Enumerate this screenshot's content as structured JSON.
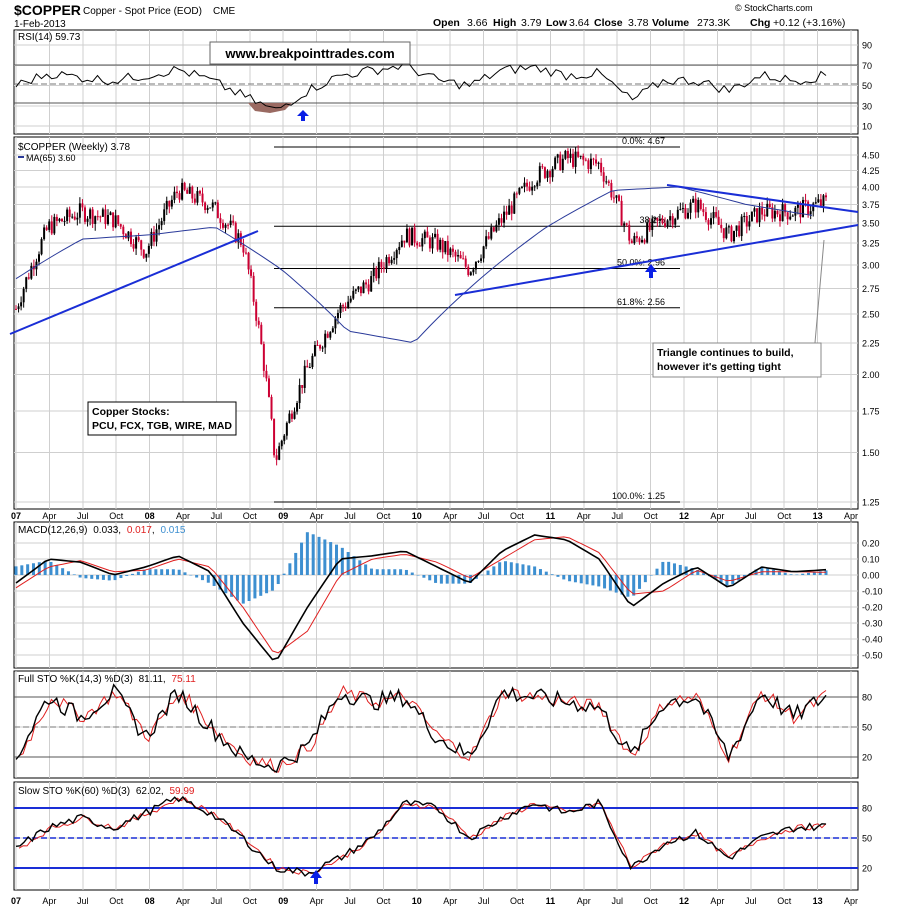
{
  "header": {
    "symbol": "$COPPER",
    "description": "Copper - Spot Price (EOD)",
    "exchange": "CME",
    "date": "1-Feb-2013",
    "copyright": "© StockCharts.com",
    "ohlc": {
      "open_label": "Open",
      "open": "3.66",
      "high_label": "High",
      "high": "3.79",
      "low_label": "Low",
      "low": "3.64",
      "close_label": "Close",
      "close": "3.78",
      "volume_label": "Volume",
      "volume": "273.3K",
      "chg_label": "Chg",
      "chg": "+0.12 (+3.16%)"
    }
  },
  "watermark": "www.breakpointtrades.com",
  "colors": {
    "price_up": "#000000",
    "price_down": "#cc0033",
    "ma": "#2a3a9a",
    "trendline": "#1a2ed6",
    "rsi_low_fill": "#9a6a62",
    "rsi_high_fill": "#9a9a9a",
    "macd_line": "#000000",
    "signal_line": "#e02020",
    "histogram": "#3d8fd0",
    "annotation_text": "#0000cc",
    "grid": "#cfcfcf",
    "arrow": "#0a1fe6"
  },
  "x_axis": {
    "labels": [
      "07",
      "Apr",
      "Jul",
      "Oct",
      "08",
      "Apr",
      "Jul",
      "Oct",
      "09",
      "Apr",
      "Jul",
      "Oct",
      "10",
      "Apr",
      "Jul",
      "Oct",
      "11",
      "Apr",
      "Jul",
      "Oct",
      "12",
      "Apr",
      "Jul",
      "Oct",
      "13",
      "Apr"
    ],
    "bold_labels": [
      "07",
      "08",
      "09",
      "10",
      "11",
      "12",
      "13"
    ]
  },
  "panels": {
    "rsi": {
      "label": "RSI(14) 59.73",
      "ticks": [
        "90",
        "70",
        "50",
        "30",
        "10"
      ]
    },
    "price": {
      "label": "$COPPER (Weekly) 3.78",
      "ma_label": "MA(65) 3.60",
      "ticks": [
        "4.50",
        "4.25",
        "4.00",
        "3.75",
        "3.50",
        "3.25",
        "3.00",
        "2.75",
        "2.50",
        "2.25",
        "2.00",
        "1.75",
        "1.50",
        "1.25"
      ],
      "fib_labels": [
        "0.0%: 4.67",
        "38.2%",
        "50.0%: 2.96",
        "61.8%: 2.56",
        "100.0%: 1.25"
      ],
      "annotations": {
        "triangle_line1": "Triangle continues to build,",
        "triangle_line2": "however it's getting tight",
        "stocks_line1": "Copper Stocks:",
        "stocks_line2": "PCU, FCX, TGB, WIRE, MAD"
      }
    },
    "macd": {
      "label_prefix": "MACD(12,26,9)",
      "macd_value": "0.033",
      "signal_value": "0.017",
      "hist_value": "0.015",
      "ticks": [
        "0.20",
        "0.10",
        "0.00",
        "-0.10",
        "-0.20",
        "-0.30",
        "-0.40",
        "-0.50"
      ]
    },
    "full_sto": {
      "label_prefix": "Full STO %K(14,3) %D(3)",
      "k_value": "81.11",
      "d_value": "75.11",
      "ticks": [
        "80",
        "50",
        "20"
      ]
    },
    "slow_sto": {
      "label_prefix": "Slow STO %K(60) %D(3)",
      "k_value": "62.02",
      "d_value": "59.99",
      "ticks": [
        "80",
        "50",
        "20"
      ]
    }
  },
  "chart_data": [
    {
      "type": "line",
      "title": "$COPPER (Weekly)",
      "series": [
        {
          "name": "$COPPER (Weekly)",
          "x": [
            "2007-01",
            "2007-04",
            "2007-07",
            "2007-10",
            "2008-01",
            "2008-04",
            "2008-07",
            "2008-10",
            "2009-01",
            "2009-04",
            "2009-07",
            "2009-10",
            "2010-01",
            "2010-04",
            "2010-07",
            "2010-10",
            "2011-01",
            "2011-04",
            "2011-07",
            "2011-10",
            "2012-01",
            "2012-04",
            "2012-07",
            "2012-10",
            "2013-01",
            "2013-02"
          ],
          "values": [
            2.55,
            3.45,
            3.65,
            3.55,
            3.15,
            3.95,
            3.75,
            3.25,
            1.45,
            2.05,
            2.55,
            2.85,
            3.35,
            3.25,
            2.95,
            3.55,
            4.15,
            4.45,
            4.35,
            3.25,
            3.55,
            3.75,
            3.35,
            3.65,
            3.65,
            3.78
          ]
        },
        {
          "name": "MA(65)",
          "x": [
            "2007-01",
            "2007-07",
            "2008-01",
            "2008-07",
            "2009-01",
            "2009-07",
            "2010-01",
            "2010-07",
            "2011-01",
            "2011-07",
            "2012-01",
            "2012-07",
            "2013-01"
          ],
          "values": [
            2.85,
            3.3,
            3.35,
            3.45,
            2.95,
            2.35,
            2.25,
            2.85,
            3.45,
            3.95,
            4.0,
            3.75,
            3.6
          ]
        }
      ],
      "scale": "log",
      "ylim": [
        1.2,
        4.8
      ]
    },
    {
      "type": "line",
      "title": "RSI(14)",
      "series": [
        {
          "name": "RSI(14)",
          "values": [
            50,
            62,
            58,
            55,
            60,
            66,
            55,
            40,
            25,
            45,
            60,
            65,
            70,
            55,
            50,
            65,
            68,
            60,
            62,
            35,
            55,
            55,
            45,
            60,
            55,
            59.73
          ]
        }
      ],
      "ylim": [
        0,
        100
      ]
    },
    {
      "type": "line",
      "title": "MACD(12,26,9)",
      "series": [
        {
          "name": "MACD",
          "values": [
            -0.05,
            0.1,
            0.08,
            0.0,
            0.05,
            0.12,
            0.02,
            -0.3,
            -0.55,
            -0.2,
            0.1,
            0.12,
            0.15,
            0.05,
            -0.05,
            0.15,
            0.25,
            0.22,
            0.1,
            -0.2,
            -0.05,
            0.05,
            -0.08,
            0.05,
            0.02,
            0.033
          ]
        },
        {
          "name": "Signal",
          "values": [
            -0.08,
            0.05,
            0.09,
            0.02,
            0.03,
            0.1,
            0.05,
            -0.2,
            -0.5,
            -0.35,
            0.0,
            0.1,
            0.13,
            0.08,
            -0.02,
            0.1,
            0.22,
            0.24,
            0.14,
            -0.12,
            -0.1,
            0.03,
            -0.04,
            0.02,
            0.02,
            0.017
          ]
        }
      ],
      "ylim": [
        -0.55,
        0.25
      ]
    },
    {
      "type": "line",
      "title": "Full STO %K(14,3) %D(3)",
      "series": [
        {
          "name": "%K",
          "values": [
            20,
            80,
            60,
            85,
            40,
            85,
            50,
            20,
            10,
            30,
            85,
            75,
            80,
            40,
            20,
            85,
            80,
            75,
            70,
            20,
            75,
            80,
            20,
            85,
            60,
            81.11
          ]
        }
      ],
      "ylim": [
        0,
        100
      ]
    },
    {
      "type": "line",
      "title": "Slow STO %K(60) %D(3)",
      "series": [
        {
          "name": "%K",
          "values": [
            40,
            60,
            70,
            60,
            75,
            90,
            75,
            50,
            20,
            15,
            30,
            50,
            85,
            80,
            50,
            70,
            85,
            75,
            85,
            20,
            45,
            55,
            30,
            50,
            60,
            62.02
          ]
        }
      ],
      "ylim": [
        0,
        100
      ]
    }
  ]
}
